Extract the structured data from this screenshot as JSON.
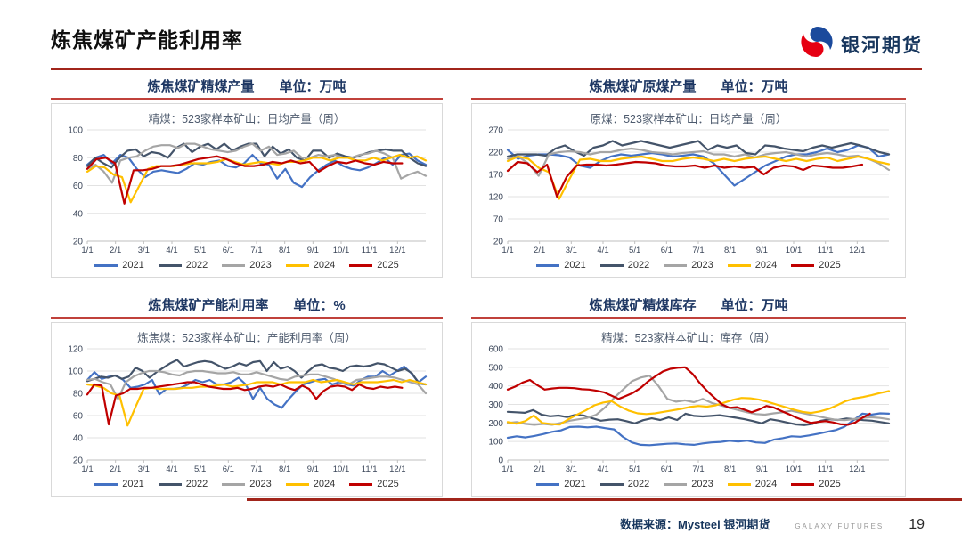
{
  "header": {
    "title": "炼焦煤矿产能利用率",
    "logo_text": "银河期货"
  },
  "footer": {
    "source": "数据来源：Mysteel 银河期货",
    "brand": "GALAXY FUTURES",
    "page": "19"
  },
  "colors": {
    "y2021": "#4472C4",
    "y2022": "#44546A",
    "y2023": "#A5A5A5",
    "y2024": "#FFC000",
    "y2025": "#C00000",
    "accent_red": "#A1251B",
    "title_navy": "#1F3864"
  },
  "chart_data": [
    {
      "type": "line",
      "title": "炼焦煤矿精煤产量",
      "unit_label": "单位：万吨",
      "subtitle": "精煤：523家样本矿山：日均产量（周）",
      "ylim": [
        20,
        100
      ],
      "yticks": [
        20,
        40,
        60,
        80,
        100
      ],
      "xticks": [
        "1/1",
        "2/1",
        "3/1",
        "4/1",
        "5/1",
        "6/1",
        "7/1",
        "8/1",
        "9/1",
        "10/1",
        "11/1",
        "12/1"
      ],
      "legend_position": "bottom",
      "grid": true,
      "series": [
        {
          "name": "2021",
          "color": "#4472C4",
          "values": [
            75,
            80,
            82,
            76,
            82,
            80,
            72,
            66,
            70,
            71,
            70,
            69,
            72,
            76,
            75,
            77,
            78,
            74,
            73,
            76,
            82,
            76,
            75,
            65,
            72,
            62,
            59,
            66,
            71,
            75,
            78,
            74,
            72,
            71,
            73,
            76,
            80,
            75,
            82,
            83,
            78,
            75
          ]
        },
        {
          "name": "2022",
          "color": "#44546A",
          "values": [
            74,
            80,
            76,
            73,
            80,
            85,
            86,
            81,
            84,
            83,
            80,
            87,
            90,
            84,
            88,
            90,
            86,
            90,
            85,
            88,
            90,
            90,
            81,
            88,
            83,
            86,
            80,
            78,
            85,
            85,
            80,
            83,
            81,
            80,
            82,
            84,
            85,
            86,
            85,
            85,
            80,
            76,
            74
          ]
        },
        {
          "name": "2023",
          "color": "#A5A5A5",
          "values": [
            72,
            75,
            70,
            62,
            78,
            80,
            81,
            85,
            88,
            89,
            89,
            87,
            90,
            90,
            88,
            86,
            85,
            84,
            85,
            88,
            90,
            85,
            88,
            82,
            83,
            85,
            80,
            80,
            82,
            81,
            82,
            80,
            80,
            82,
            83,
            85,
            83,
            80,
            65,
            68,
            70,
            67
          ]
        },
        {
          "name": "2024",
          "color": "#FFC000",
          "values": [
            70,
            74,
            73,
            68,
            66,
            48,
            60,
            72,
            74,
            74,
            74,
            75,
            76,
            76,
            76,
            77,
            79,
            77,
            75,
            76,
            77,
            76,
            75,
            77,
            77,
            78,
            80,
            80,
            78,
            80,
            80,
            78,
            78,
            80,
            78,
            80,
            82,
            80,
            81,
            78
          ]
        },
        {
          "name": "2025",
          "color": "#C00000",
          "span": 0.93,
          "values": [
            72,
            79,
            80,
            76,
            47,
            71,
            71,
            72,
            74,
            74,
            75,
            77,
            79,
            80,
            81,
            79,
            76,
            74,
            74,
            75,
            77,
            76,
            78,
            76,
            77,
            70,
            74,
            77,
            76,
            78,
            76,
            75,
            77,
            76,
            76
          ]
        }
      ]
    },
    {
      "type": "line",
      "title": "炼焦煤矿原煤产量",
      "unit_label": "单位：万吨",
      "subtitle": "原煤：523家样本矿山：日均产量（周）",
      "ylim": [
        20,
        270
      ],
      "yticks": [
        20,
        70,
        120,
        170,
        220,
        270
      ],
      "xticks": [
        "1/1",
        "2/1",
        "3/1",
        "4/1",
        "5/1",
        "6/1",
        "7/1",
        "8/1",
        "9/1",
        "10/1",
        "11/1",
        "12/1"
      ],
      "legend_position": "bottom",
      "grid": true,
      "series": [
        {
          "name": "2021",
          "color": "#4472C4",
          "values": [
            225,
            205,
            212,
            215,
            215,
            213,
            208,
            190,
            185,
            200,
            210,
            215,
            212,
            215,
            218,
            215,
            210,
            212,
            215,
            210,
            195,
            170,
            145,
            160,
            175,
            190,
            200,
            210,
            215,
            215,
            220,
            228,
            220,
            225,
            235,
            230,
            210,
            215
          ]
        },
        {
          "name": "2022",
          "color": "#44546A",
          "values": [
            210,
            215,
            215,
            215,
            212,
            228,
            235,
            222,
            212,
            230,
            235,
            245,
            235,
            240,
            245,
            240,
            235,
            230,
            235,
            240,
            245,
            225,
            235,
            230,
            235,
            218,
            215,
            235,
            233,
            228,
            225,
            222,
            230,
            235,
            230,
            235,
            240,
            235,
            228,
            220,
            215
          ]
        },
        {
          "name": "2023",
          "color": "#A5A5A5",
          "values": [
            205,
            210,
            195,
            167,
            215,
            220,
            222,
            220,
            215,
            220,
            220,
            225,
            228,
            225,
            220,
            218,
            215,
            218,
            220,
            222,
            215,
            215,
            210,
            215,
            208,
            215,
            218,
            220,
            215,
            210,
            215,
            218,
            215,
            210,
            212,
            205,
            195,
            180
          ]
        },
        {
          "name": "2024",
          "color": "#FFC000",
          "values": [
            200,
            210,
            205,
            185,
            175,
            115,
            160,
            203,
            205,
            200,
            200,
            205,
            208,
            210,
            205,
            200,
            200,
            205,
            208,
            205,
            200,
            205,
            200,
            205,
            208,
            210,
            205,
            200,
            205,
            200,
            205,
            208,
            200,
            205,
            210,
            205,
            198,
            193
          ]
        },
        {
          "name": "2025",
          "color": "#C00000",
          "span": 0.93,
          "values": [
            178,
            198,
            195,
            175,
            192,
            120,
            165,
            190,
            192,
            192,
            190,
            192,
            195,
            198,
            197,
            195,
            190,
            188,
            188,
            190,
            185,
            190,
            185,
            188,
            185,
            187,
            170,
            185,
            190,
            188,
            180,
            190,
            188,
            185,
            185,
            188,
            192
          ]
        }
      ]
    },
    {
      "type": "line",
      "title": "炼焦煤矿产能利用率",
      "unit_label": "单位：%",
      "subtitle": "炼焦煤：523家样本矿山：产能利用率（周）",
      "ylim": [
        20,
        120
      ],
      "yticks": [
        20,
        40,
        60,
        80,
        100,
        120
      ],
      "xticks": [
        "1/1",
        "2/1",
        "3/1",
        "4/1",
        "5/1",
        "6/1",
        "7/1",
        "8/1",
        "9/1",
        "10/1",
        "11/1",
        "12/1"
      ],
      "legend_position": "bottom",
      "grid": true,
      "series": [
        {
          "name": "2021",
          "color": "#4472C4",
          "values": [
            92,
            99,
            93,
            95,
            96,
            92,
            85,
            86,
            88,
            92,
            79,
            84,
            84,
            85,
            88,
            92,
            90,
            92,
            88,
            88,
            90,
            94,
            88,
            75,
            85,
            75,
            70,
            67,
            75,
            82,
            88,
            90,
            92,
            93,
            88,
            90,
            88,
            87,
            92,
            95,
            95,
            100,
            96,
            100,
            104,
            98,
            90,
            95
          ]
        },
        {
          "name": "2022",
          "color": "#44546A",
          "values": [
            91,
            93,
            95,
            94,
            96,
            93,
            95,
            103,
            100,
            94,
            99,
            103,
            107,
            110,
            104,
            106,
            108,
            109,
            108,
            105,
            102,
            104,
            107,
            105,
            108,
            109,
            100,
            108,
            102,
            104,
            100,
            94,
            100,
            105,
            106,
            103,
            102,
            100,
            104,
            105,
            104,
            105,
            107,
            106,
            103,
            100,
            102,
            98,
            89,
            88
          ]
        },
        {
          "name": "2023",
          "color": "#A5A5A5",
          "values": [
            92,
            93,
            90,
            88,
            75,
            90,
            95,
            98,
            100,
            100,
            99,
            97,
            96,
            99,
            100,
            100,
            99,
            98,
            98,
            99,
            97,
            97,
            99,
            97,
            95,
            93,
            92,
            95,
            96,
            97,
            97,
            95,
            93,
            90,
            88,
            92,
            93,
            94,
            95,
            95,
            94,
            92,
            90,
            88,
            80
          ]
        },
        {
          "name": "2024",
          "color": "#FFC000",
          "values": [
            88,
            87,
            85,
            80,
            78,
            51,
            68,
            84,
            85,
            84,
            84,
            84,
            85,
            85,
            86,
            86,
            87,
            88,
            86,
            87,
            88,
            90,
            90,
            90,
            88,
            90,
            90,
            90,
            92,
            90,
            91,
            92,
            90,
            88,
            90,
            90,
            90,
            91,
            92,
            90,
            92,
            90,
            88
          ]
        },
        {
          "name": "2025",
          "color": "#C00000",
          "span": 0.93,
          "values": [
            79,
            88,
            87,
            52,
            78,
            80,
            84,
            84,
            85,
            85,
            86,
            87,
            88,
            89,
            90,
            90,
            88,
            86,
            85,
            84,
            84,
            85,
            83,
            84,
            86,
            87,
            86,
            88,
            85,
            83,
            87,
            84,
            75,
            82,
            86,
            87,
            86,
            83,
            88,
            85,
            84,
            86,
            85,
            86,
            85
          ]
        }
      ]
    },
    {
      "type": "line",
      "title": "炼焦煤矿精煤库存",
      "unit_label": "单位：万吨",
      "subtitle": "精煤：523家样本矿山：库存（周）",
      "ylim": [
        0,
        600
      ],
      "yticks": [
        0,
        100,
        200,
        300,
        400,
        500,
        600
      ],
      "xticks": [
        "1/1",
        "2/1",
        "3/1",
        "4/1",
        "5/1",
        "6/1",
        "7/1",
        "8/1",
        "9/1",
        "10/1",
        "11/1",
        "12/1"
      ],
      "legend_position": "bottom",
      "grid": true,
      "series": [
        {
          "name": "2021",
          "color": "#4472C4",
          "values": [
            120,
            128,
            122,
            130,
            140,
            152,
            160,
            178,
            180,
            176,
            180,
            172,
            165,
            125,
            95,
            82,
            80,
            84,
            88,
            90,
            85,
            82,
            90,
            95,
            98,
            104,
            100,
            105,
            95,
            92,
            110,
            118,
            128,
            126,
            133,
            142,
            152,
            162,
            180,
            215,
            250,
            245,
            252,
            250
          ]
        },
        {
          "name": "2022",
          "color": "#44546A",
          "values": [
            260,
            258,
            255,
            270,
            245,
            236,
            240,
            232,
            244,
            240,
            225,
            212,
            218,
            220,
            210,
            198,
            215,
            225,
            216,
            230,
            216,
            250,
            238,
            235,
            238,
            242,
            235,
            228,
            220,
            210,
            198,
            220,
            212,
            202,
            192,
            188,
            195,
            212,
            220,
            216,
            224,
            220,
            215,
            212,
            205,
            198
          ]
        },
        {
          "name": "2023",
          "color": "#A5A5A5",
          "values": [
            200,
            205,
            195,
            190,
            195,
            190,
            200,
            212,
            220,
            228,
            245,
            285,
            335,
            380,
            425,
            445,
            455,
            400,
            330,
            315,
            322,
            312,
            330,
            308,
            295,
            282,
            270,
            258,
            248,
            245,
            252,
            258,
            266,
            256,
            246,
            236,
            226,
            217,
            215,
            221,
            228,
            231,
            227,
            220
          ]
        },
        {
          "name": "2024",
          "color": "#FFC000",
          "values": [
            205,
            196,
            210,
            240,
            200,
            194,
            191,
            220,
            245,
            268,
            295,
            310,
            318,
            288,
            266,
            252,
            248,
            252,
            260,
            268,
            276,
            286,
            292,
            288,
            295,
            310,
            325,
            335,
            333,
            326,
            314,
            300,
            286,
            272,
            260,
            254,
            262,
            275,
            295,
            318,
            332,
            340,
            350,
            362,
            372
          ]
        },
        {
          "name": "2025",
          "color": "#C00000",
          "span": 0.95,
          "values": [
            380,
            396,
            418,
            432,
            404,
            380,
            386,
            390,
            390,
            388,
            382,
            380,
            374,
            366,
            348,
            330,
            346,
            364,
            390,
            425,
            452,
            478,
            492,
            498,
            500,
            465,
            415,
            372,
            335,
            300,
            282,
            285,
            272,
            258,
            272,
            292,
            283,
            265,
            248,
            230,
            214,
            200,
            206,
            210,
            203,
            193,
            190,
            202,
            228,
            250
          ]
        }
      ]
    }
  ]
}
